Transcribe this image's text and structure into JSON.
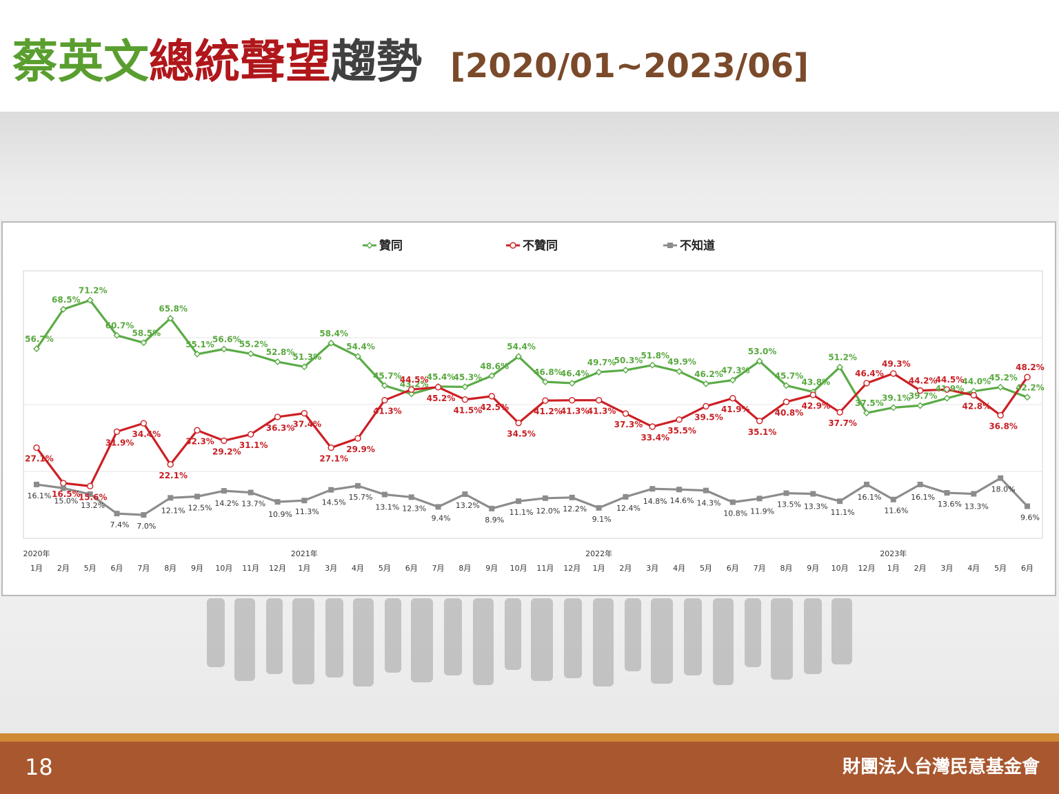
{
  "header": {
    "title_parts": [
      {
        "text": "蔡英文",
        "color": "#5a9e2f"
      },
      {
        "text": "總統聲望",
        "color": "#b0171b"
      },
      {
        "text": "趨勢",
        "color": "#404040"
      }
    ],
    "range": "[2020/01~2023/06]",
    "range_color": "#7a4a2a"
  },
  "footer": {
    "page_number": "18",
    "org": "財團法人台灣民意基金會"
  },
  "chart_data": {
    "type": "line",
    "legend_position": "top",
    "x_months": [
      "1月",
      "2月",
      "5月",
      "6月",
      "7月",
      "8月",
      "9月",
      "10月",
      "11月",
      "12月",
      "1月",
      "3月",
      "4月",
      "5月",
      "6月",
      "7月",
      "8月",
      "9月",
      "10月",
      "11月",
      "12月",
      "1月",
      "2月",
      "3月",
      "4月",
      "5月",
      "6月",
      "7月",
      "8月",
      "9月",
      "10月",
      "12月",
      "1月",
      "2月",
      "3月",
      "4月",
      "5月",
      "6月"
    ],
    "year_labels": [
      {
        "index": 0,
        "label": "2020年"
      },
      {
        "index": 10,
        "label": "2021年"
      },
      {
        "index": 21,
        "label": "2022年"
      },
      {
        "index": 32,
        "label": "2023年"
      }
    ],
    "ylim": [
      0,
      80
    ],
    "gridlines": [
      20,
      40,
      60
    ],
    "series": [
      {
        "name": "贊同",
        "color": "#5aab46",
        "marker": "diamond",
        "values": [
          56.7,
          68.5,
          71.2,
          60.7,
          58.5,
          65.8,
          55.1,
          56.6,
          55.2,
          52.8,
          51.3,
          58.4,
          54.4,
          45.7,
          43.2,
          45.4,
          45.3,
          48.6,
          54.4,
          46.8,
          46.4,
          49.7,
          50.3,
          51.8,
          49.9,
          46.2,
          47.3,
          53.0,
          45.7,
          43.8,
          51.2,
          37.5,
          39.1,
          39.7,
          41.9,
          44.0,
          45.2,
          42.2
        ]
      },
      {
        "name": "不贊同",
        "color": "#cc1f24",
        "marker": "circle",
        "values": [
          27.1,
          16.5,
          15.6,
          31.9,
          34.4,
          22.1,
          32.3,
          29.2,
          31.1,
          36.3,
          37.4,
          27.1,
          29.9,
          41.3,
          44.5,
          45.2,
          41.5,
          42.5,
          34.5,
          41.2,
          41.3,
          41.3,
          37.3,
          33.4,
          35.5,
          39.5,
          41.9,
          35.1,
          40.8,
          42.9,
          37.7,
          46.4,
          49.3,
          44.2,
          44.5,
          42.8,
          36.8,
          48.2
        ]
      },
      {
        "name": "不知道",
        "color": "#8c8c8c",
        "marker": "square",
        "values": [
          16.1,
          15.0,
          13.2,
          7.4,
          7.0,
          12.1,
          12.5,
          14.2,
          13.7,
          10.9,
          11.3,
          14.5,
          15.7,
          13.1,
          12.3,
          9.4,
          13.2,
          8.9,
          11.1,
          12.0,
          12.2,
          9.1,
          12.4,
          14.8,
          14.6,
          14.3,
          10.8,
          11.9,
          13.5,
          13.3,
          11.1,
          16.1,
          11.6,
          16.1,
          13.6,
          13.3,
          18.0,
          9.6
        ]
      }
    ]
  }
}
